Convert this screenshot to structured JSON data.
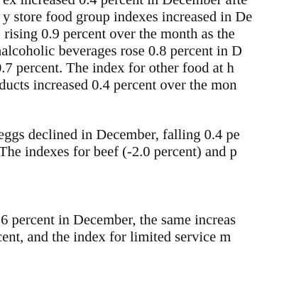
{
  "document": {
    "paragraph_1": [
      "ex increased 0.4 percent in December afte",
      "y store food group indexes increased in De",
      ", rising 0.9 percent over the month as the",
      "nalcoholic beverages rose 0.8 percent in D",
      "0.7 percent. The index for other food at h",
      "oducts increased 0.4 percent over the mon"
    ],
    "paragraph_2": [
      "eggs declined in December, falling 0.4 pe",
      "The indexes for beef (-2.0 percent) and p"
    ],
    "paragraph_3": [
      ".6 percent in December, the same increas",
      "cent, and the index for limited service m"
    ]
  }
}
